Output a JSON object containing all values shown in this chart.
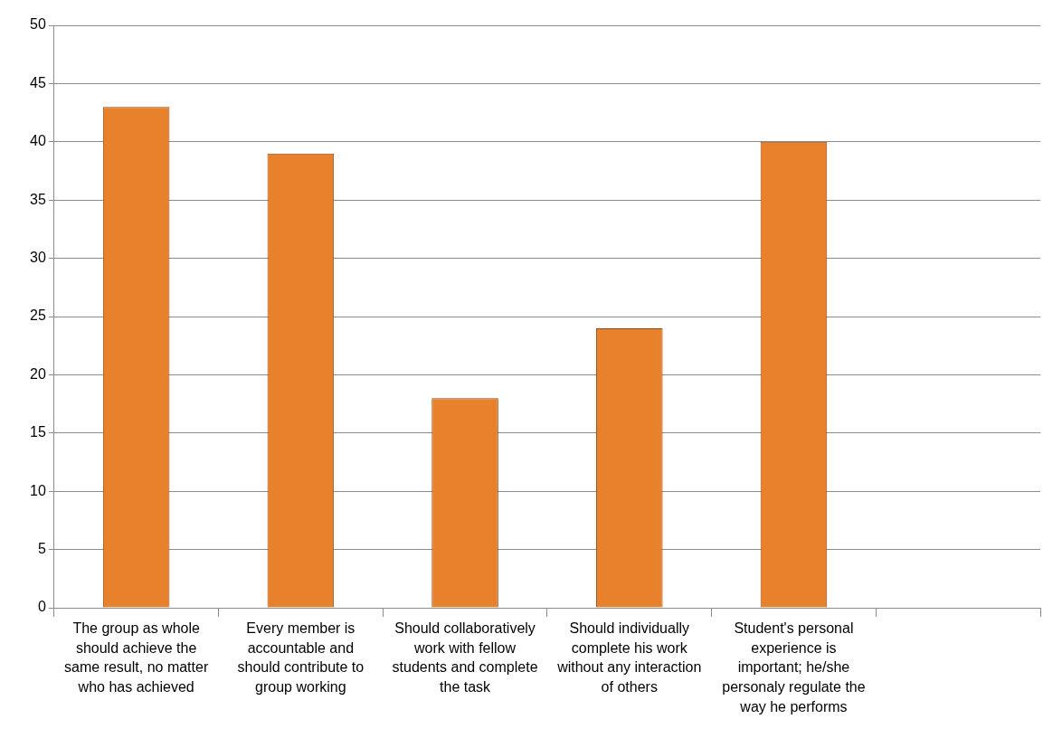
{
  "chart_data": {
    "type": "bar",
    "categories": [
      "The group as whole should achieve the same result, no matter who has achieved",
      "Every member is accountable and should contribute to group working",
      "Should collaboratively work with fellow students and complete the task",
      "Should individually complete his work without any interaction of others",
      "Student's personal experience is important; he/she personaly regulate the way he performs",
      null
    ],
    "values": [
      43,
      39,
      18,
      24,
      40,
      null
    ],
    "color": "#e8812c",
    "ylim": [
      0,
      50
    ],
    "yticks": [
      0,
      5,
      10,
      15,
      20,
      25,
      30,
      35,
      40,
      45,
      50
    ],
    "grid": "y"
  }
}
